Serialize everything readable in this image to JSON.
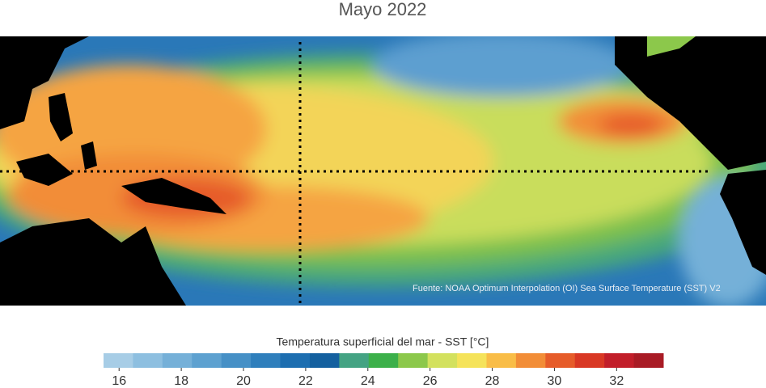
{
  "title": "Mayo 2022",
  "source": "Fuente: NOAA Optimum Interpolation (OI) Sea Surface Temperature (SST) V2",
  "colorbar": {
    "label": "Temperatura superficial del mar - SST  [°C]",
    "lim": [
      15.5,
      33.5
    ],
    "ticks": [
      16,
      18,
      20,
      22,
      24,
      26,
      28,
      30,
      32
    ],
    "colors": [
      "#a7cde6",
      "#8dbfe0",
      "#75b0d8",
      "#5da1d0",
      "#4690c6",
      "#2f7fbc",
      "#1d6eb0",
      "#14609f",
      "#44a383",
      "#3cb04a",
      "#8cc84b",
      "#d3e15e",
      "#f5e35a",
      "#f9bd47",
      "#f28d37",
      "#e65c2a",
      "#d93824",
      "#c21e2a",
      "#a91b25"
    ]
  }
}
